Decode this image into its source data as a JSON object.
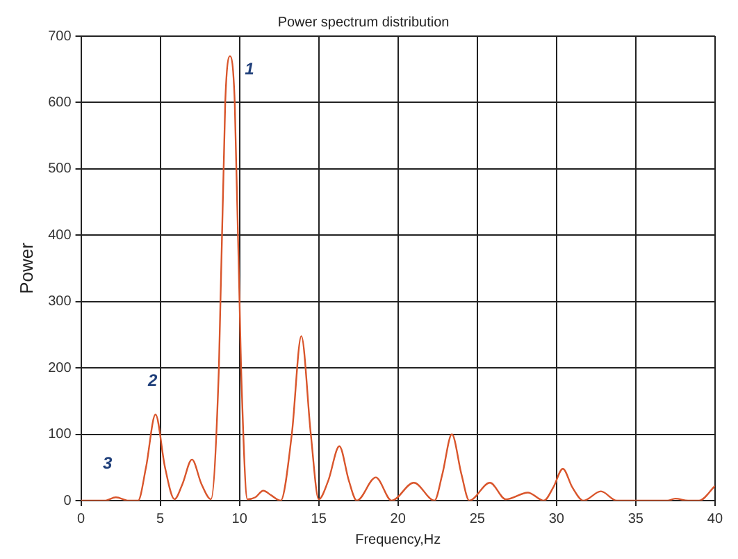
{
  "chart_data": {
    "type": "line",
    "title": "Power spectrum distribution",
    "xlabel": "Frequency,Hz",
    "ylabel": "Power",
    "x": [
      0,
      1.5,
      2.2,
      3,
      3.6,
      4.1,
      4.7,
      5.3,
      5.9,
      6.4,
      7,
      7.6,
      8.2,
      8.7,
      9.1,
      9.4,
      9.7,
      10.1,
      10.5,
      11,
      11.5,
      12,
      12.6,
      13.3,
      13.9,
      14.5,
      15,
      15.6,
      16.3,
      16.9,
      17.4,
      18.6,
      19.6,
      21,
      22.3,
      22.8,
      23.4,
      24,
      24.5,
      25.8,
      26.8,
      28.2,
      29.2,
      29.8,
      30.4,
      31,
      31.7,
      32.8,
      33.8,
      37,
      37.5,
      38.3,
      39,
      40
    ],
    "series": [
      {
        "color": "#d9552b",
        "values": [
          0,
          0,
          5,
          0,
          0,
          50,
          130,
          50,
          2,
          25,
          62,
          25,
          2,
          200,
          600,
          670,
          600,
          200,
          2,
          5,
          15,
          8,
          0,
          100,
          248,
          100,
          2,
          30,
          82,
          30,
          0,
          35,
          0,
          27,
          0,
          40,
          100,
          40,
          0,
          27,
          2,
          12,
          0,
          20,
          48,
          20,
          0,
          14,
          0,
          0,
          3,
          0,
          0,
          22
        ]
      }
    ],
    "xlim": [
      0,
      40
    ],
    "xticks": [
      0,
      5,
      10,
      15,
      20,
      25,
      30,
      35,
      40
    ],
    "ylim": [
      0,
      700
    ],
    "yticks": [
      0,
      100,
      200,
      300,
      400,
      500,
      600,
      700
    ],
    "grid": true,
    "legend": false,
    "marker": "none",
    "line_style": "solid",
    "annotations": [
      {
        "text": "1",
        "x": 9.4,
        "y": 670
      },
      {
        "text": "2",
        "x": 4.7,
        "y": 130
      },
      {
        "text": "3",
        "x": 2.2,
        "y": 5
      }
    ]
  }
}
